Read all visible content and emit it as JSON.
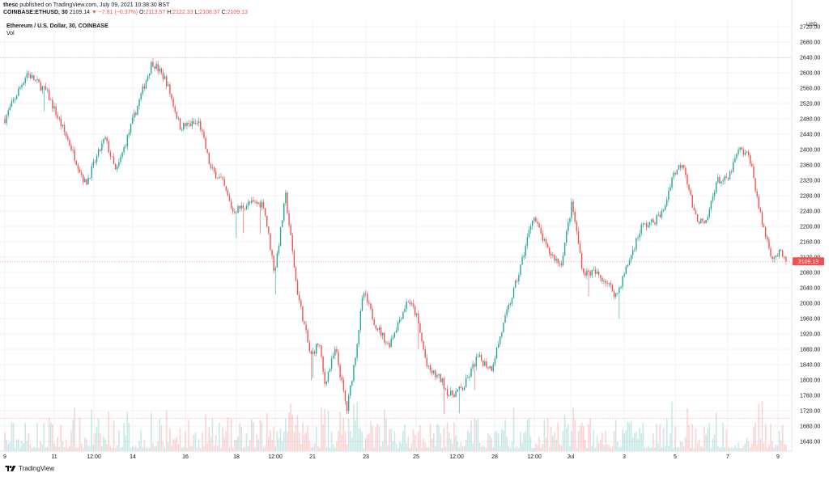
{
  "header": {
    "publisher": "thesc",
    "published_line": "published on TradingView.com, July 09, 2021 10:38:30 BST",
    "symbol": "COINBASE:ETHUSD, 30",
    "last_price": "2109.14",
    "change": "▼ −7.81 (−0.37%)",
    "open_label": "O:",
    "open": "2113.57",
    "high_label": "H:",
    "high": "2122.33",
    "low_label": "L:",
    "low": "2108.37",
    "close_label": "C:",
    "close": "2109.13"
  },
  "legend": {
    "title": "Ethereum / U.S. Dollar, 30, COINBASE",
    "vol_label": "Vol"
  },
  "axis": {
    "currency": "USD"
  },
  "price_tag": "2109.13",
  "footer": {
    "brand": "TradingView"
  },
  "colors": {
    "up": "#26a69a",
    "down": "#ef5350",
    "grid": "#f0f3fa",
    "axis_text": "#131722"
  },
  "chart_data": {
    "type": "candlestick",
    "title": "Ethereum / U.S. Dollar, 30, COINBASE",
    "ylabel": "USD",
    "ylim": [
      1615,
      2735
    ],
    "y_ticks": [
      2720,
      2680,
      2640,
      2600,
      2560,
      2520,
      2480,
      2440,
      2400,
      2360,
      2320,
      2280,
      2240,
      2200,
      2160,
      2120,
      2080,
      2040,
      2000,
      1960,
      1920,
      1880,
      1840,
      1800,
      1760,
      1720,
      1680,
      1640
    ],
    "x_tick_labels": [
      "9",
      "11",
      "12:00",
      "14",
      "16",
      "18",
      "12:00",
      "21",
      "23",
      "25",
      "12:00",
      "28",
      "12:00",
      "Jul",
      "3",
      "5",
      "7",
      "9"
    ],
    "last_close": 2109.13,
    "reference_lines": [
      2640,
      1700
    ],
    "price_path": [
      [
        0,
        2480
      ],
      [
        0.8,
        2600
      ],
      [
        1.5,
        2550
      ],
      [
        2.3,
        2420
      ],
      [
        2.9,
        2310
      ],
      [
        3.6,
        2430
      ],
      [
        4.0,
        2340
      ],
      [
        4.8,
        2520
      ],
      [
        5.3,
        2630
      ],
      [
        5.8,
        2580
      ],
      [
        6.3,
        2460
      ],
      [
        7.0,
        2470
      ],
      [
        7.4,
        2350
      ],
      [
        7.8,
        2320
      ],
      [
        8.2,
        2240
      ],
      [
        8.8,
        2260
      ],
      [
        9.3,
        2260
      ],
      [
        9.7,
        2080
      ],
      [
        10.1,
        2280
      ],
      [
        10.5,
        2040
      ],
      [
        11.0,
        1860
      ],
      [
        11.3,
        1900
      ],
      [
        11.5,
        1790
      ],
      [
        11.9,
        1880
      ],
      [
        12.3,
        1720
      ],
      [
        12.6,
        1860
      ],
      [
        12.9,
        2030
      ],
      [
        13.3,
        1950
      ],
      [
        13.8,
        1890
      ],
      [
        14.5,
        2010
      ],
      [
        14.8,
        1970
      ],
      [
        15.2,
        1830
      ],
      [
        15.7,
        1800
      ],
      [
        16.0,
        1760
      ],
      [
        16.5,
        1780
      ],
      [
        17.0,
        1860
      ],
      [
        17.5,
        1830
      ],
      [
        18.0,
        1960
      ],
      [
        18.5,
        2080
      ],
      [
        19.0,
        2230
      ],
      [
        19.5,
        2140
      ],
      [
        20.0,
        2100
      ],
      [
        20.4,
        2260
      ],
      [
        20.8,
        2080
      ],
      [
        21.2,
        2080
      ],
      [
        21.6,
        2060
      ],
      [
        22.0,
        2020
      ],
      [
        22.5,
        2120
      ],
      [
        22.9,
        2200
      ],
      [
        23.3,
        2210
      ],
      [
        23.7,
        2240
      ],
      [
        24.0,
        2330
      ],
      [
        24.4,
        2370
      ],
      [
        24.8,
        2230
      ],
      [
        25.2,
        2200
      ],
      [
        25.6,
        2320
      ],
      [
        26.0,
        2320
      ],
      [
        26.4,
        2400
      ],
      [
        26.8,
        2380
      ],
      [
        27.2,
        2220
      ],
      [
        27.6,
        2120
      ],
      [
        27.9,
        2130
      ],
      [
        28.1,
        2105
      ]
    ]
  }
}
